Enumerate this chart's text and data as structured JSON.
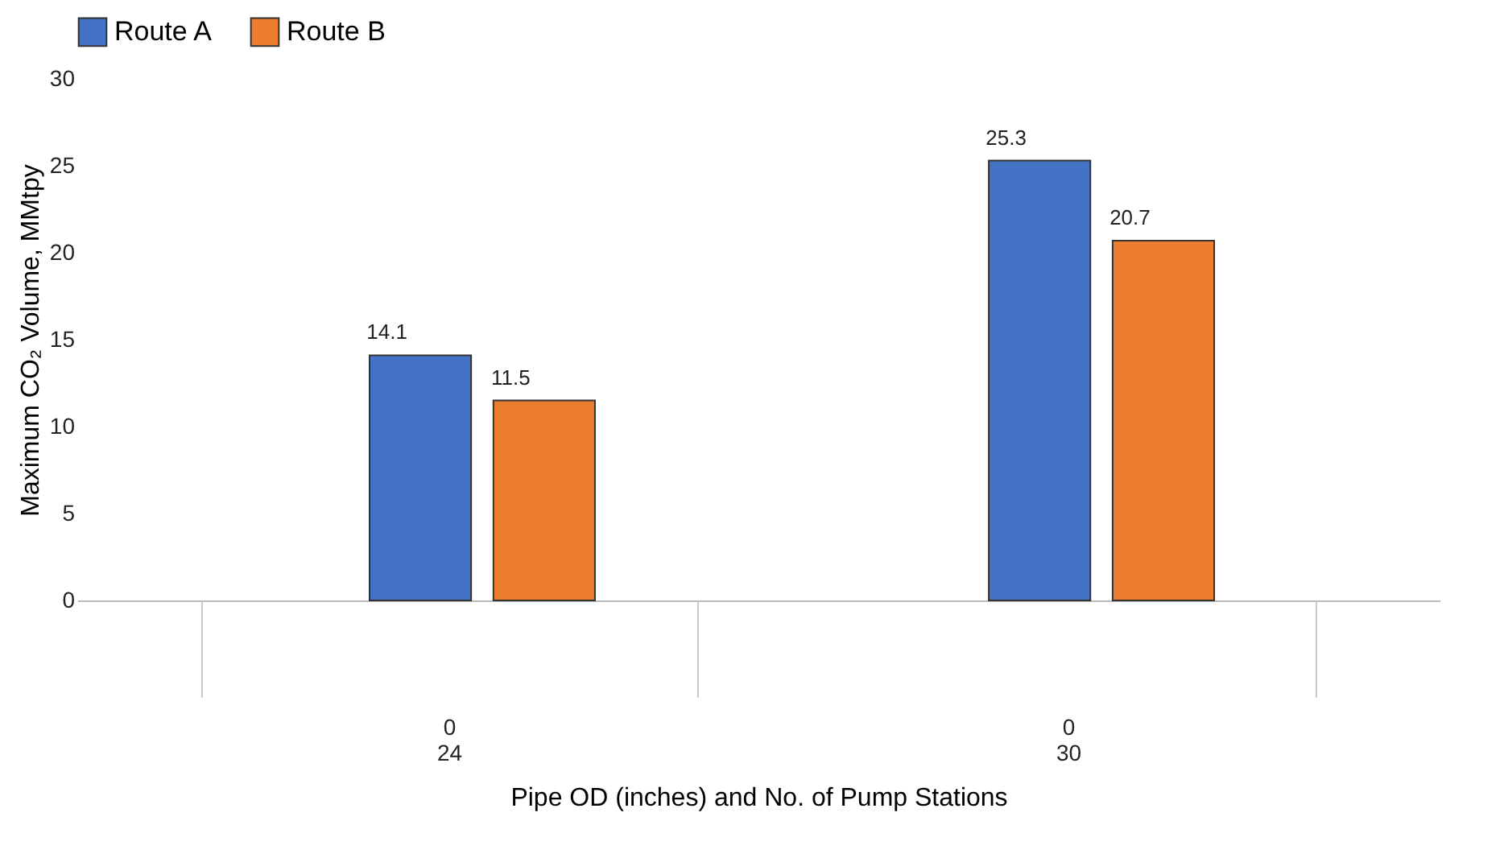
{
  "chart_data": {
    "type": "bar",
    "xlabel": "Pipe OD (inches) and No. of Pump Stations",
    "ylabel": "Maximum CO₂ Volume, MMtpy",
    "categories": [
      "0\n24",
      "0\n30"
    ],
    "series": [
      {
        "name": "Route A",
        "color": "#4472c4",
        "values": [
          14.1,
          25.3
        ]
      },
      {
        "name": "Route B",
        "color": "#ed7d31",
        "values": [
          11.5,
          20.7
        ]
      }
    ],
    "ylim": [
      0,
      30
    ],
    "yticks": [
      0,
      5,
      10,
      15,
      20,
      25,
      30
    ],
    "grid": false,
    "legend": "top",
    "data_labels": true
  }
}
